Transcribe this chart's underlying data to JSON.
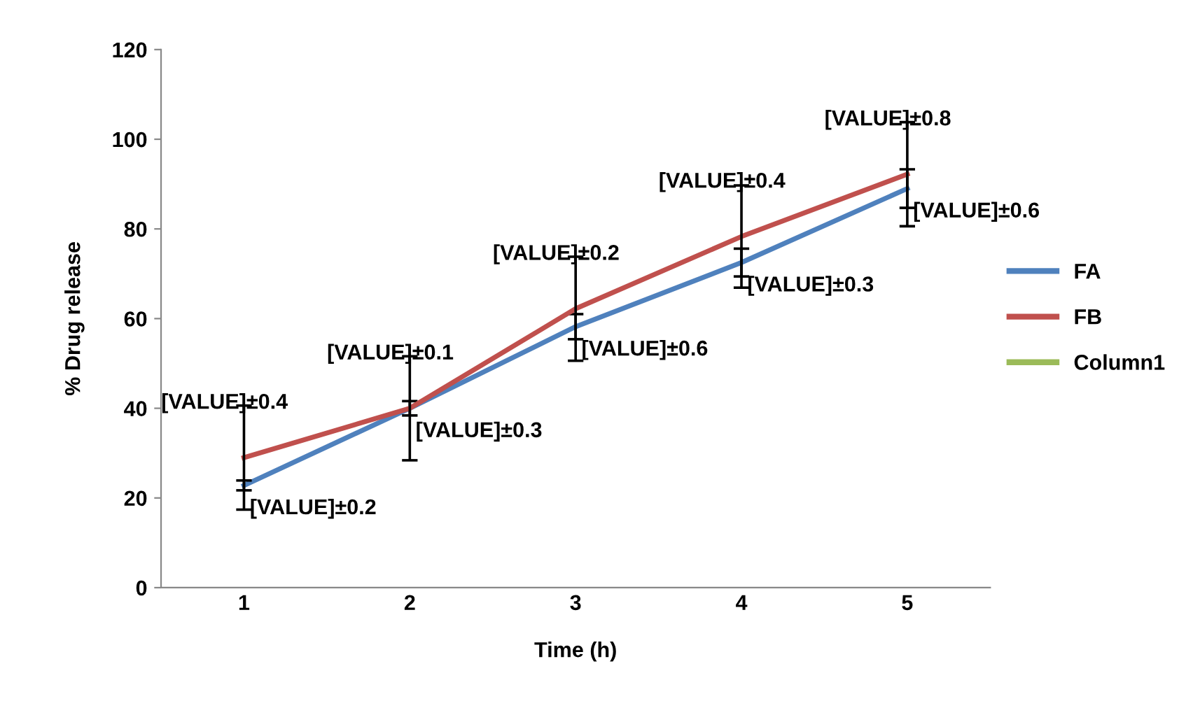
{
  "chart_data": {
    "type": "line",
    "xlabel": "Time (h)",
    "ylabel": "% Drug release",
    "categories": [
      "1",
      "2",
      "3",
      "4",
      "5"
    ],
    "series": [
      {
        "name": "FA",
        "color": "#4f81bd",
        "values": [
          22.8,
          40,
          58.2,
          72.5,
          89
        ],
        "errors": [
          1.1,
          1.6,
          2.8,
          3.1,
          4.3
        ]
      },
      {
        "name": "FB",
        "color": "#c0504d",
        "values": [
          29,
          40,
          62.2,
          78.3,
          92.2
        ],
        "errors": [
          11.6,
          11.6,
          11.6,
          11.4,
          11.6
        ]
      },
      {
        "name": "Column1",
        "color": "#9bbb59",
        "values": [
          null,
          null,
          null,
          null,
          null
        ]
      }
    ],
    "annotations": [
      {
        "text": "[VALUE]±0.4",
        "x": "1",
        "y": 29
      },
      {
        "text": "[VALUE]±0.1",
        "x": "2",
        "y": 40
      },
      {
        "text": "[VALUE]±0.2",
        "x": "3",
        "y": 62.2
      },
      {
        "text": "[VALUE]±0.4",
        "x": "4",
        "y": 78.3
      },
      {
        "text": "[VALUE]±0.8",
        "x": "5",
        "y": 92.2
      },
      {
        "text": "[VALUE]±0.2",
        "x": "1",
        "y": 22.8
      },
      {
        "text": "[VALUE]±0.3",
        "x": "2",
        "y": 40
      },
      {
        "text": "[VALUE]±0.6",
        "x": "3",
        "y": 58.2
      },
      {
        "text": "[VALUE]±0.3",
        "x": "4",
        "y": 72.5
      },
      {
        "text": "[VALUE]±0.6",
        "x": "5",
        "y": 89
      }
    ],
    "ylim": [
      0,
      120
    ],
    "yticks": [
      0,
      20,
      40,
      60,
      80,
      100,
      120
    ],
    "grid": false,
    "legend": "right"
  }
}
